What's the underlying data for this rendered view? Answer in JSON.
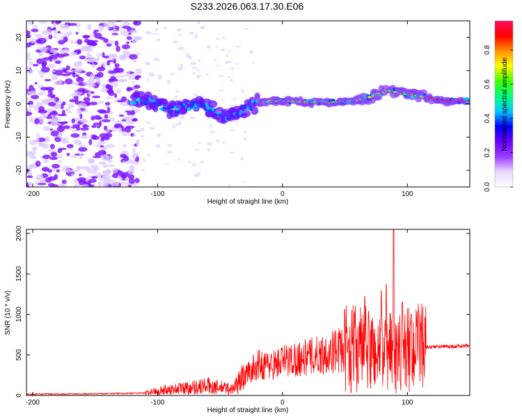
{
  "title": "S233.2026.063.17.30.E06",
  "chart_data": [
    {
      "type": "heatmap",
      "xlabel": "Height of straight line (km)",
      "ylabel": "Frequency (Hz)",
      "xlim": [
        -205,
        150
      ],
      "ylim": [
        -25,
        25
      ],
      "xticks": [
        -200,
        -100,
        0,
        100
      ],
      "yticks": [
        -20,
        -10,
        0,
        10,
        20
      ],
      "colorbar": {
        "label": "Normalized spectral amplitude",
        "range": [
          0.0,
          0.97
        ],
        "ticks": [
          "0.0",
          "0.2",
          "0.4",
          "0.6",
          "0.8"
        ],
        "tick_values": [
          0.0,
          0.2,
          0.4,
          0.6,
          0.8
        ],
        "colors": [
          "#ffffff",
          "#e8d8ff",
          "#9a3cff",
          "#6a00ff",
          "#0000ff",
          "#00c8ff",
          "#00ff80",
          "#40ff00",
          "#ffff00",
          "#ff9000",
          "#ff0000",
          "#ff1060"
        ]
      },
      "features": {
        "noise_region_x": [
          -205,
          -115
        ],
        "signal_band": [
          {
            "x": -120,
            "y": 1.5
          },
          {
            "x": -100,
            "y": 0
          },
          {
            "x": -90,
            "y": -2
          },
          {
            "x": -80,
            "y": -1
          },
          {
            "x": -70,
            "y": 0
          },
          {
            "x": -60,
            "y": -1
          },
          {
            "x": -45,
            "y": -4
          },
          {
            "x": -35,
            "y": -3
          },
          {
            "x": -20,
            "y": 0.5
          },
          {
            "x": 0,
            "y": 1
          },
          {
            "x": 20,
            "y": 0.5
          },
          {
            "x": 40,
            "y": 0.5
          },
          {
            "x": 60,
            "y": 1
          },
          {
            "x": 70,
            "y": 2
          },
          {
            "x": 85,
            "y": 4
          },
          {
            "x": 100,
            "y": 3
          },
          {
            "x": 115,
            "y": 2
          },
          {
            "x": 130,
            "y": 1
          },
          {
            "x": 150,
            "y": 1
          }
        ]
      }
    },
    {
      "type": "line",
      "xlabel": "Height of straight line (km)",
      "ylabel": "SNR (10 * v/v)",
      "xlim": [
        -205,
        150
      ],
      "ylim": [
        0,
        2050
      ],
      "xticks": [
        -200,
        -100,
        0,
        100
      ],
      "yticks": [
        0,
        500,
        1000,
        1500,
        2000
      ],
      "color": "#ff0000",
      "envelope": [
        {
          "x": -205,
          "y": 15
        },
        {
          "x": -150,
          "y": 20
        },
        {
          "x": -110,
          "y": 30
        },
        {
          "x": -100,
          "y": 60
        },
        {
          "x": -80,
          "y": 90
        },
        {
          "x": -60,
          "y": 120
        },
        {
          "x": -40,
          "y": 80
        },
        {
          "x": -30,
          "y": 250
        },
        {
          "x": -20,
          "y": 380
        },
        {
          "x": -10,
          "y": 370
        },
        {
          "x": 0,
          "y": 420
        },
        {
          "x": 10,
          "y": 450
        },
        {
          "x": 20,
          "y": 470
        },
        {
          "x": 30,
          "y": 500
        },
        {
          "x": 40,
          "y": 540
        },
        {
          "x": 50,
          "y": 570
        },
        {
          "x": 60,
          "y": 580
        },
        {
          "x": 70,
          "y": 560
        },
        {
          "x": 80,
          "y": 520
        },
        {
          "x": 90,
          "y": 540
        },
        {
          "x": 100,
          "y": 560
        },
        {
          "x": 110,
          "y": 590
        },
        {
          "x": 120,
          "y": 600
        },
        {
          "x": 150,
          "y": 610
        }
      ],
      "peaks": [
        {
          "x": 50,
          "y": 1060
        },
        {
          "x": 66,
          "y": 1220
        },
        {
          "x": 79,
          "y": 1290
        },
        {
          "x": 83,
          "y": 1370
        },
        {
          "x": 89,
          "y": 2050
        },
        {
          "x": 96,
          "y": 1150
        },
        {
          "x": 103,
          "y": 1000
        }
      ]
    }
  ]
}
